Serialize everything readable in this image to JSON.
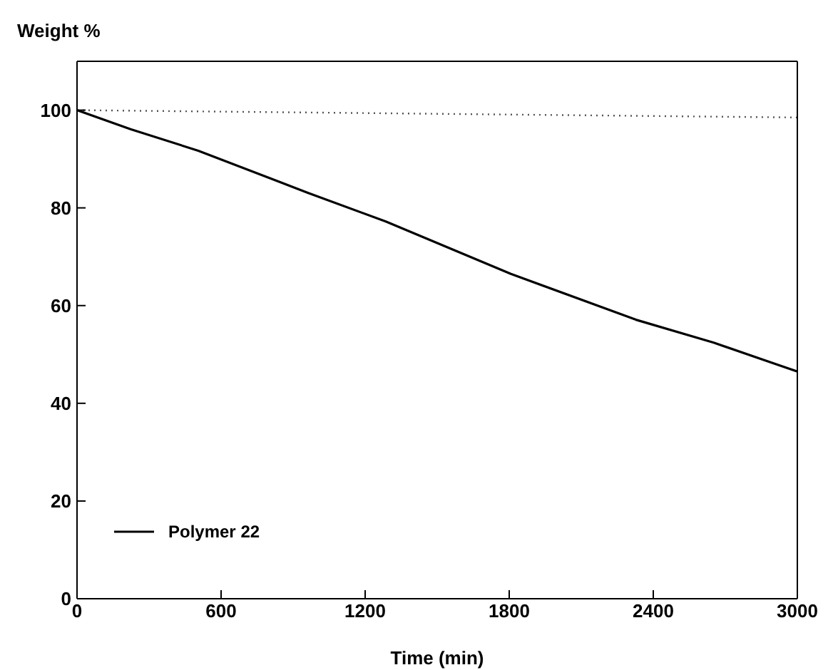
{
  "chart_data": {
    "type": "line",
    "xlabel": "Time (min)",
    "ylabel": "Weight %",
    "xlim": [
      0,
      3000
    ],
    "xticks": [
      0,
      600,
      1200,
      1800,
      2400,
      3000
    ],
    "ylim": [
      0,
      110
    ],
    "yticks": [
      0,
      20,
      40,
      60,
      80,
      100
    ],
    "legend": "bottom left",
    "grid": false,
    "series": [
      {
        "name": "Polymer 22",
        "color": "#000000",
        "line_style": "solid",
        "x": [
          0,
          223,
          505,
          961,
          1286,
          1807,
          2328,
          2652,
          3000
        ],
        "values": [
          100,
          96.1,
          91.7,
          83.1,
          77.2,
          66.5,
          57.1,
          52.4,
          46.5
        ]
      },
      {
        "color": "#555555",
        "line_style": "dotted",
        "x": [
          0,
          1000,
          2000,
          3000
        ],
        "values": [
          100,
          99.5,
          99,
          98.5
        ]
      }
    ]
  }
}
